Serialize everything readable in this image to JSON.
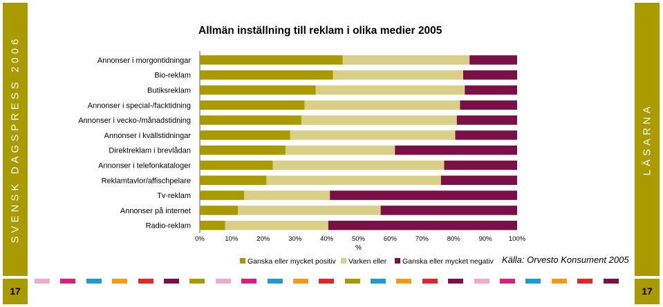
{
  "side": {
    "left_text": "SVENSK DAGSPRESS 2006",
    "right_text": "LÄSARNA",
    "page_number": "17"
  },
  "colors": {
    "band": "#a89a00",
    "strip": [
      "#f2aacb",
      "#dc1f7d",
      "#1f9bcf",
      "#f39a1a",
      "#e3262a",
      "#7a1046",
      "#a89a00",
      "#f2aacb",
      "#dc1f7d",
      "#1f9bcf",
      "#f39a1a",
      "#e3262a",
      "#a89a00",
      "#1f9bcf",
      "#f39a1a",
      "#e3262a",
      "#7a1046",
      "#f2aacb",
      "#dc1f7d",
      "#1f9bcf",
      "#f39a1a",
      "#e3262a",
      "#7a1046"
    ]
  },
  "source": "Källa: Orvesto Konsument 2005",
  "chart_data": {
    "type": "bar",
    "orientation": "horizontal",
    "stacked": true,
    "title": "Allmän inställning till reklam i olika medier 2005",
    "xlabel": "%",
    "xlim": [
      0,
      100
    ],
    "xticks": [
      "0%",
      "10%",
      "20%",
      "30%",
      "40%",
      "50%",
      "60%",
      "70%",
      "80%",
      "90%",
      "100%"
    ],
    "legend_position": "bottom",
    "categories": [
      "Annonser i morgontidningar",
      "Bio-reklam",
      "Butiksreklam",
      "Annonser i special-/facktidning",
      "Annonser i vecko-/månadstidning",
      "Annonser i kvällstidningar",
      "Direktreklam i brevlådan",
      "Annonser i telefonkataloger",
      "Reklamtavlor/affischpelare",
      "Tv-reklam",
      "Annonser på internet",
      "Radio-reklam"
    ],
    "series": [
      {
        "name": "Ganska eller mycket positiv",
        "color": "#a89a00",
        "values": [
          45,
          42,
          36.5,
          33,
          32,
          28.5,
          27,
          23,
          21,
          14,
          12,
          8
        ]
      },
      {
        "name": "Varken eller",
        "color": "#d9cf86",
        "values": [
          40,
          41,
          47,
          49,
          49,
          52,
          34.5,
          54,
          55,
          27,
          45,
          32.5
        ]
      },
      {
        "name": "Ganska eller mycket negativ",
        "color": "#7a1046",
        "values": [
          15,
          17,
          16.5,
          18,
          19,
          19.5,
          38.5,
          23,
          24,
          59,
          43,
          59.5
        ]
      }
    ]
  }
}
